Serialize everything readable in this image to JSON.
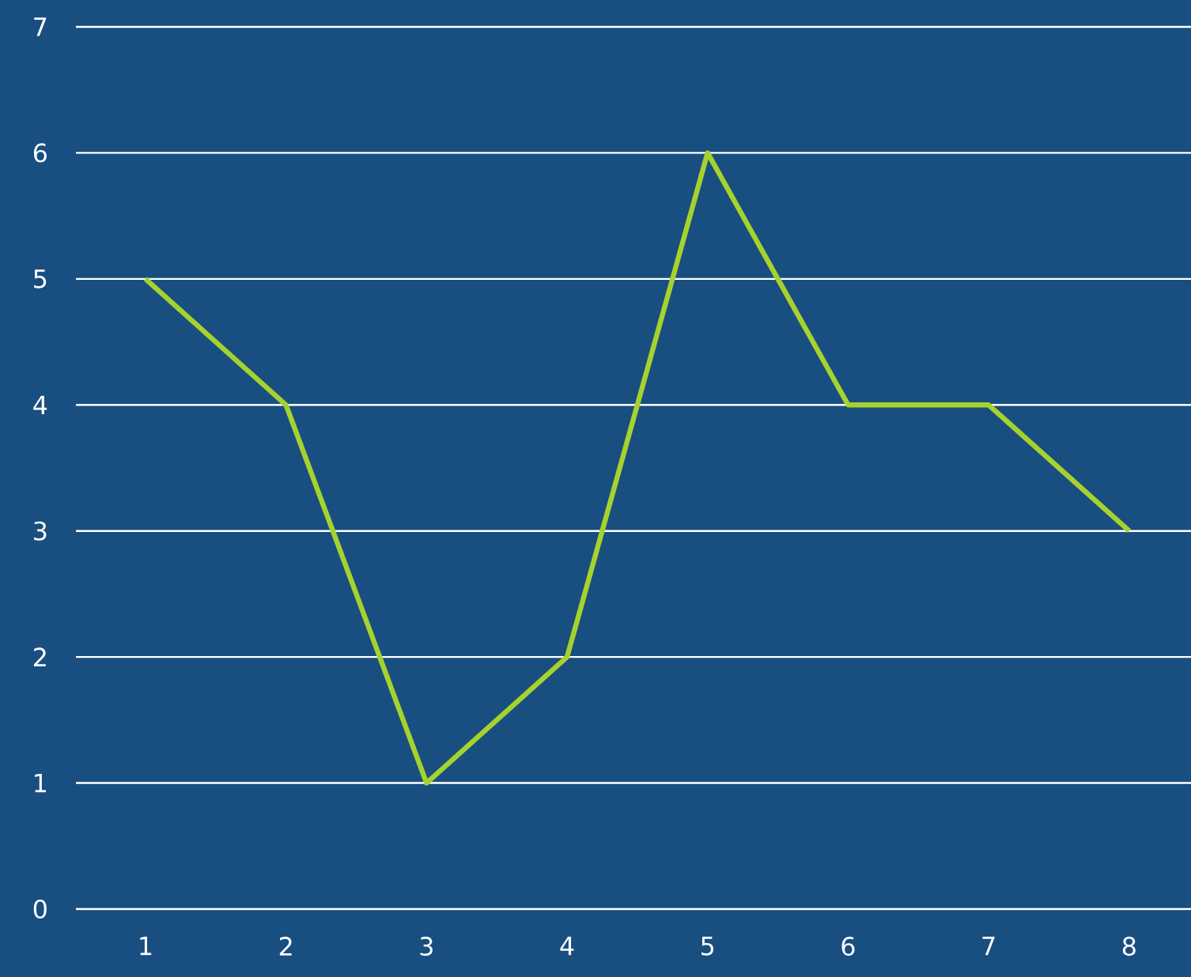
{
  "chart_data": {
    "type": "line",
    "categories": [
      "1",
      "2",
      "3",
      "4",
      "5",
      "6",
      "7",
      "8"
    ],
    "series": [
      {
        "color": "#a6d22e",
        "values": [
          5,
          4,
          1,
          2,
          6,
          4,
          4,
          3
        ]
      }
    ],
    "ylim": [
      0,
      7
    ],
    "yticks": [
      0,
      1,
      2,
      3,
      4,
      5,
      6,
      7
    ],
    "grid": "y",
    "legend": false,
    "marker": "none",
    "line_style": "solid"
  }
}
